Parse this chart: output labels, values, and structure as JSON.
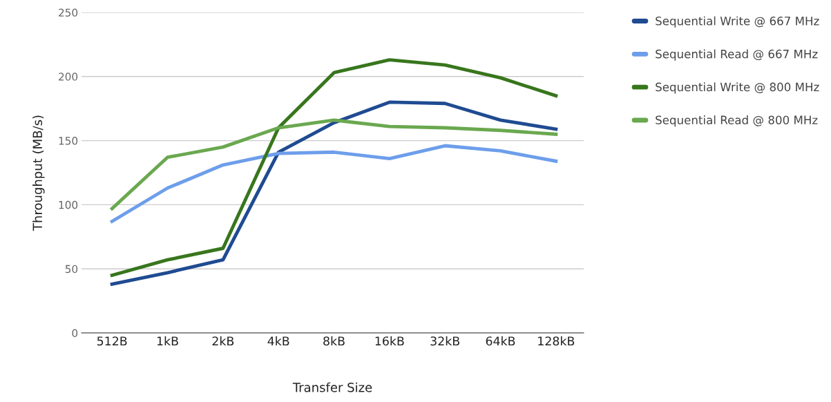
{
  "chart_data": {
    "type": "line",
    "xlabel": "Transfer Size",
    "ylabel": "Throughput (MB/s)",
    "categories": [
      "512B",
      "1kB",
      "2kB",
      "4kB",
      "8kB",
      "16kB",
      "32kB",
      "64kB",
      "128kB"
    ],
    "series": [
      {
        "name": "Sequential Write @ 667 MHz",
        "color": "#1f4b91",
        "values": [
          38,
          47,
          57,
          141,
          164,
          180,
          179,
          166,
          159
        ]
      },
      {
        "name": "Sequential Read @ 667 MHz",
        "color": "#6d9eeb",
        "values": [
          87,
          113,
          131,
          140,
          141,
          136,
          146,
          142,
          134
        ]
      },
      {
        "name": "Sequential Write @ 800 MHz",
        "color": "#38761d",
        "values": [
          45,
          57,
          66,
          160,
          203,
          213,
          209,
          199,
          185
        ]
      },
      {
        "name": "Sequential Read @ 800 MHz",
        "color": "#6aa84f",
        "values": [
          97,
          137,
          145,
          160,
          166,
          161,
          160,
          158,
          155
        ]
      }
    ],
    "ylim": [
      0,
      250
    ],
    "yticks": [
      0,
      50,
      100,
      150,
      200,
      250
    ],
    "grid": "y",
    "legend": "top right",
    "marker": "none",
    "line_style": "solid"
  }
}
